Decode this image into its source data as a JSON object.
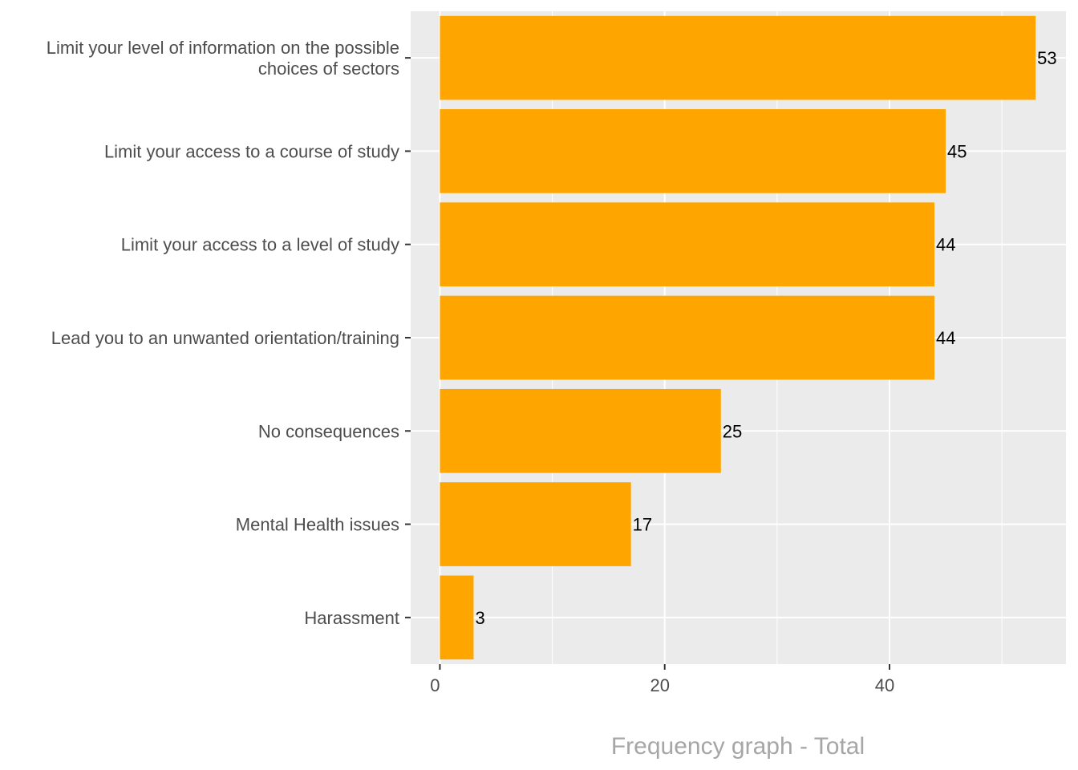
{
  "chart_data": {
    "type": "bar",
    "orientation": "horizontal",
    "title": "Frequency graph - Total",
    "xlabel": "",
    "ylabel": "",
    "categories": [
      [
        "Limit your level of information on the possible",
        "choices of sectors"
      ],
      [
        "Limit your access to a course of study"
      ],
      [
        "Limit your access to a level of study"
      ],
      [
        "Lead you to an unwanted orientation/training"
      ],
      [
        "No consequences"
      ],
      [
        "Mental Health issues"
      ],
      [
        "Harassment"
      ]
    ],
    "values": [
      53,
      45,
      44,
      44,
      25,
      17,
      3
    ],
    "data_labels": [
      "53",
      "45",
      "44",
      "44",
      "25",
      "17",
      "3"
    ],
    "xlim": [
      -2.6,
      55.7
    ],
    "xticks": [
      0,
      20,
      40
    ],
    "xtick_labels": [
      "0",
      "20",
      "40"
    ],
    "minor_xticks": [
      10,
      30,
      50
    ],
    "grid": true,
    "legend": "none",
    "bar_color": "#FFA500",
    "panel_color": "#EBEBEB",
    "grid_color": "#FFFFFF"
  }
}
